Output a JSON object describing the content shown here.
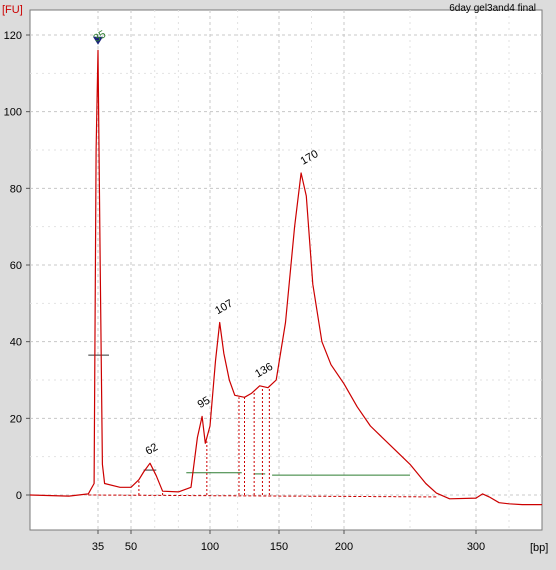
{
  "chart_data": {
    "type": "line",
    "title": "6day gel3and4 final",
    "ylabel": "[FU]",
    "xlabel": "[bp]",
    "ylim": [
      -9,
      127
    ],
    "y_ticks": [
      0,
      20,
      40,
      60,
      80,
      100,
      120
    ],
    "x_ticks": [
      {
        "label": "35",
        "pos": 35
      },
      {
        "label": "50",
        "pos": 50
      },
      {
        "label": "100",
        "pos": 100
      },
      {
        "label": "150",
        "pos": 150
      },
      {
        "label": "200",
        "pos": 200
      },
      {
        "label": "300",
        "pos": 300
      }
    ],
    "xlim": [
      0,
      400
    ],
    "grid": true,
    "series": [
      {
        "color": "#cc0000",
        "points": [
          [
            0,
            0
          ],
          [
            20,
            -0.3
          ],
          [
            30,
            0.3
          ],
          [
            33,
            3
          ],
          [
            34,
            90
          ],
          [
            35,
            116
          ],
          [
            36,
            60
          ],
          [
            37,
            8
          ],
          [
            38,
            3
          ],
          [
            45,
            2
          ],
          [
            50,
            2
          ],
          [
            55,
            4
          ],
          [
            58,
            6
          ],
          [
            62,
            8.3
          ],
          [
            66,
            5
          ],
          [
            70,
            1
          ],
          [
            80,
            0.8
          ],
          [
            88,
            2
          ],
          [
            92,
            15
          ],
          [
            95,
            20.5
          ],
          [
            97,
            13.5
          ],
          [
            100,
            18
          ],
          [
            104,
            35
          ],
          [
            107,
            45
          ],
          [
            110,
            37
          ],
          [
            114,
            30
          ],
          [
            118,
            26
          ],
          [
            125,
            25.5
          ],
          [
            130,
            26.5
          ],
          [
            136,
            28.5
          ],
          [
            142,
            28
          ],
          [
            148,
            30
          ],
          [
            155,
            45
          ],
          [
            162,
            70
          ],
          [
            167,
            84
          ],
          [
            171,
            78
          ],
          [
            176,
            55
          ],
          [
            183,
            40
          ],
          [
            190,
            34
          ],
          [
            200,
            29
          ],
          [
            210,
            23
          ],
          [
            220,
            18
          ],
          [
            235,
            13
          ],
          [
            250,
            8
          ],
          [
            262,
            3
          ],
          [
            270,
            0.5
          ],
          [
            280,
            -1
          ],
          [
            300,
            -0.8
          ],
          [
            310,
            0.3
          ],
          [
            320,
            -0.5
          ],
          [
            335,
            -2
          ],
          [
            350,
            -2.3
          ],
          [
            370,
            -2.5
          ],
          [
            385,
            -2.5
          ],
          [
            400,
            -2.5
          ]
        ]
      }
    ],
    "baseline": {
      "color": "#cc0000",
      "points": [
        [
          30,
          0
        ],
        [
          270,
          -0.5
        ]
      ]
    },
    "peak_labels": [
      {
        "x": 35,
        "y": 116,
        "label": "35",
        "color": "#2e7d32"
      },
      {
        "x": 62,
        "y": 8.3,
        "label": "62",
        "color": "#000000"
      },
      {
        "x": 95,
        "y": 20.5,
        "label": "95",
        "color": "#000000"
      },
      {
        "x": 107,
        "y": 45,
        "label": "107",
        "color": "#000000"
      },
      {
        "x": 136,
        "y": 28.5,
        "label": "136",
        "color": "#000000"
      },
      {
        "x": 170,
        "y": 84,
        "label": "170",
        "color": "#000000"
      }
    ],
    "peak_boundaries": [
      {
        "x": 55,
        "y": 4
      },
      {
        "x": 70,
        "y": 1
      },
      {
        "x": 98,
        "y": 14
      },
      {
        "x": 121,
        "y": 25.5
      },
      {
        "x": 125,
        "y": 25.5
      },
      {
        "x": 132,
        "y": 27
      },
      {
        "x": 138,
        "y": 28
      },
      {
        "x": 143,
        "y": 28.5
      }
    ],
    "regions": [
      {
        "x1": 85,
        "x2": 123,
        "y": 5.8,
        "color": "#2e7d32"
      },
      {
        "x1": 132,
        "x2": 140,
        "y": 5.5,
        "color": "#2e7d32"
      },
      {
        "x1": 145,
        "x2": 250,
        "y": 5.2,
        "color": "#2e7d32"
      }
    ],
    "height_markers": [
      {
        "x1": 30,
        "x2": 40,
        "y": 36.5,
        "color": "#333333"
      },
      {
        "x1": 58,
        "x2": 66,
        "y": 6.5,
        "color": "#333333"
      }
    ],
    "marker": {
      "x": 35,
      "y": 118.5,
      "color": "#1a237e"
    }
  }
}
